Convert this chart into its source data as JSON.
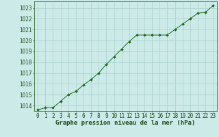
{
  "x": [
    0,
    1,
    2,
    3,
    4,
    5,
    6,
    7,
    8,
    9,
    10,
    11,
    12,
    13,
    14,
    15,
    16,
    17,
    18,
    19,
    20,
    21,
    22,
    23
  ],
  "y": [
    1013.6,
    1013.8,
    1013.8,
    1014.4,
    1015.0,
    1015.3,
    1015.9,
    1016.4,
    1017.0,
    1017.8,
    1018.5,
    1019.2,
    1019.9,
    1020.5,
    1020.5,
    1020.5,
    1020.5,
    1020.5,
    1021.0,
    1021.5,
    1022.0,
    1022.5,
    1022.6,
    1023.2
  ],
  "ylim": [
    1013.5,
    1023.6
  ],
  "yticks": [
    1014,
    1015,
    1016,
    1017,
    1018,
    1019,
    1020,
    1021,
    1022,
    1023
  ],
  "xticks": [
    0,
    1,
    2,
    3,
    4,
    5,
    6,
    7,
    8,
    9,
    10,
    11,
    12,
    13,
    14,
    15,
    16,
    17,
    18,
    19,
    20,
    21,
    22,
    23
  ],
  "xlabel": "Graphe pression niveau de la mer (hPa)",
  "line_color": "#1a6b1a",
  "marker": "D",
  "marker_size": 2.0,
  "bg_color": "#cceae8",
  "grid_color": "#aacfcc",
  "border_color": "#3d6b3d",
  "tick_label_color": "#1a4a1a",
  "xlabel_color": "#1a4a1a",
  "xlabel_fontsize": 6.5,
  "tick_fontsize": 5.5
}
